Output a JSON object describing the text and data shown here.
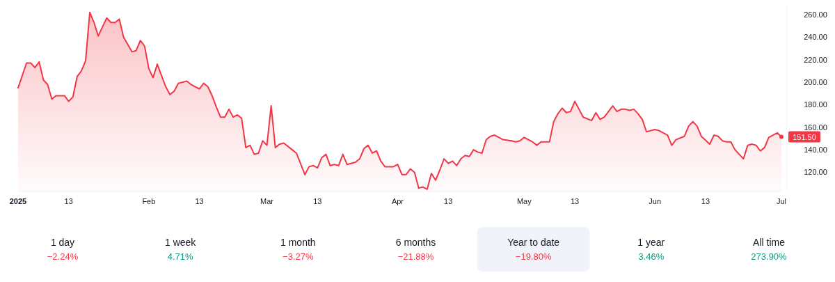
{
  "chart_data": [
    {
      "type": "area",
      "x": [
        "2025-01-01",
        "2025-01-03",
        "2025-01-04",
        "2025-01-05",
        "2025-01-06",
        "2025-01-07",
        "2025-01-08",
        "2025-01-09",
        "2025-01-10",
        "2025-01-12",
        "2025-01-13",
        "2025-01-14",
        "2025-01-15",
        "2025-01-16",
        "2025-01-17",
        "2025-01-18",
        "2025-01-19",
        "2025-01-20",
        "2025-01-22",
        "2025-01-23",
        "2025-01-24",
        "2025-01-25",
        "2025-01-26",
        "2025-01-28",
        "2025-01-29",
        "2025-01-30",
        "2025-01-31",
        "2025-02-01",
        "2025-02-02",
        "2025-02-03",
        "2025-02-04",
        "2025-02-05",
        "2025-02-06",
        "2025-02-07",
        "2025-02-08",
        "2025-02-10",
        "2025-02-11",
        "2025-02-12",
        "2025-02-13",
        "2025-02-14",
        "2025-02-15",
        "2025-02-16",
        "2025-02-17",
        "2025-02-18",
        "2025-02-19",
        "2025-02-20",
        "2025-02-21",
        "2025-02-22",
        "2025-02-23",
        "2025-02-24",
        "2025-02-25",
        "2025-02-26",
        "2025-02-27",
        "2025-02-28",
        "2025-03-01",
        "2025-03-02",
        "2025-03-03",
        "2025-03-04",
        "2025-03-05",
        "2025-03-07",
        "2025-03-08",
        "2025-03-10",
        "2025-03-11",
        "2025-03-12",
        "2025-03-13",
        "2025-03-14",
        "2025-03-15",
        "2025-03-16",
        "2025-03-17",
        "2025-03-18",
        "2025-03-19",
        "2025-03-20",
        "2025-03-22",
        "2025-03-23",
        "2025-03-24",
        "2025-03-25",
        "2025-03-26",
        "2025-03-27",
        "2025-03-28",
        "2025-03-29",
        "2025-03-31",
        "2025-04-01",
        "2025-04-02",
        "2025-04-03",
        "2025-04-04",
        "2025-04-05",
        "2025-04-06",
        "2025-04-07",
        "2025-04-08",
        "2025-04-09",
        "2025-04-10",
        "2025-04-11",
        "2025-04-12",
        "2025-04-13",
        "2025-04-14",
        "2025-04-15",
        "2025-04-16",
        "2025-04-17",
        "2025-04-18",
        "2025-04-19",
        "2025-04-20",
        "2025-04-21",
        "2025-04-22",
        "2025-04-23",
        "2025-04-24",
        "2025-04-26",
        "2025-04-28",
        "2025-04-29",
        "2025-04-30",
        "2025-05-01",
        "2025-05-02",
        "2025-05-03",
        "2025-05-04",
        "2025-05-05",
        "2025-05-06",
        "2025-05-07",
        "2025-05-08",
        "2025-05-09",
        "2025-05-10",
        "2025-05-11",
        "2025-05-12",
        "2025-05-13",
        "2025-05-14",
        "2025-05-15",
        "2025-05-17",
        "2025-05-18",
        "2025-05-19",
        "2025-05-20",
        "2025-05-21",
        "2025-05-22",
        "2025-05-23",
        "2025-05-24",
        "2025-05-25",
        "2025-05-26",
        "2025-05-27",
        "2025-05-28",
        "2025-05-29",
        "2025-05-30",
        "2025-05-31",
        "2025-06-01",
        "2025-06-02",
        "2025-06-04",
        "2025-06-05",
        "2025-06-06",
        "2025-06-08",
        "2025-06-09",
        "2025-06-10",
        "2025-06-11",
        "2025-06-12",
        "2025-06-14",
        "2025-06-15",
        "2025-06-16",
        "2025-06-17",
        "2025-06-18",
        "2025-06-19",
        "2025-06-20",
        "2025-06-21",
        "2025-06-22",
        "2025-06-23",
        "2025-06-24",
        "2025-06-25",
        "2025-06-26",
        "2025-06-27",
        "2025-06-28",
        "2025-06-29",
        "2025-06-30",
        "2025-07-01"
      ],
      "series": [
        {
          "color": "#f23645",
          "values": [
            195,
            217,
            217,
            213,
            218,
            202,
            198,
            185,
            188,
            188,
            183,
            187,
            205,
            210,
            219,
            262,
            253,
            241,
            257,
            253,
            253,
            256,
            240,
            227,
            228,
            237,
            232,
            212,
            204,
            216,
            206,
            196,
            189,
            192,
            199,
            201,
            198,
            196,
            194,
            199,
            196,
            188,
            178,
            169,
            169,
            176,
            169,
            171,
            168,
            142,
            144,
            136,
            137,
            148,
            144,
            179,
            142,
            145,
            146,
            140,
            137,
            118,
            125,
            126,
            124,
            133,
            136,
            126,
            127,
            126,
            136,
            127,
            129,
            132,
            141,
            144,
            137,
            139,
            130,
            125,
            125,
            127,
            118,
            118,
            123,
            120,
            106,
            107,
            105,
            119,
            113,
            122,
            132,
            128,
            130,
            126,
            132,
            135,
            134,
            140,
            138,
            137,
            149,
            152,
            153,
            149,
            148,
            147,
            148,
            151,
            149,
            147,
            144,
            147,
            147,
            147,
            165,
            172,
            177,
            173,
            174,
            183,
            176,
            169,
            166,
            173,
            167,
            169,
            174,
            179,
            174,
            176,
            176,
            175,
            176,
            172,
            167,
            156,
            157,
            158,
            157,
            153,
            144,
            149,
            152,
            161,
            165,
            161,
            152,
            145,
            153,
            152,
            148,
            147,
            147,
            140,
            136,
            132,
            144,
            145,
            144,
            139,
            142,
            151,
            153,
            155,
            151.5
          ]
        }
      ],
      "xlim": [
        "2025-01-01",
        "2025-07-01"
      ],
      "xticks": [
        {
          "value": "2025-01-01",
          "label": "2025"
        },
        {
          "value": "2025-01-13",
          "label": "13"
        },
        {
          "value": "2025-02-01",
          "label": "Feb"
        },
        {
          "value": "2025-02-13",
          "label": "13"
        },
        {
          "value": "2025-03-01",
          "label": "Mar"
        },
        {
          "value": "2025-03-13",
          "label": "13"
        },
        {
          "value": "2025-04-01",
          "label": "Apr"
        },
        {
          "value": "2025-04-13",
          "label": "13"
        },
        {
          "value": "2025-05-01",
          "label": "May"
        },
        {
          "value": "2025-05-13",
          "label": "13"
        },
        {
          "value": "2025-06-01",
          "label": "Jun"
        },
        {
          "value": "2025-06-13",
          "label": "13"
        },
        {
          "value": "2025-07-01",
          "label": "Jul"
        }
      ],
      "ylim": [
        103,
        268
      ],
      "yticks": [
        {
          "value": 120,
          "label": "120.00"
        },
        {
          "value": 140,
          "label": "140.00"
        },
        {
          "value": 160,
          "label": "160.00"
        },
        {
          "value": 180,
          "label": "180.00"
        },
        {
          "value": 200,
          "label": "200.00"
        },
        {
          "value": 220,
          "label": "220.00"
        },
        {
          "value": 240,
          "label": "240.00"
        },
        {
          "value": 260,
          "label": "260.00"
        }
      ],
      "annotations": [
        {
          "text": "151.50",
          "x": "2025-07-01",
          "y": 151.5
        }
      ]
    },
    {
      "type": "other",
      "categories": [
        "1 day",
        "1 week",
        "1 month",
        "6 months",
        "Year to date",
        "1 year",
        "All time"
      ],
      "value_labels": [
        "−2.24%",
        "4.71%",
        "−3.27%",
        "−21.88%",
        "−19.80%",
        "3.46%",
        "273.90%"
      ],
      "colors": [
        "#f23645",
        "#089981",
        "#f23645",
        "#f23645",
        "#f23645",
        "#089981",
        "#089981"
      ]
    }
  ]
}
